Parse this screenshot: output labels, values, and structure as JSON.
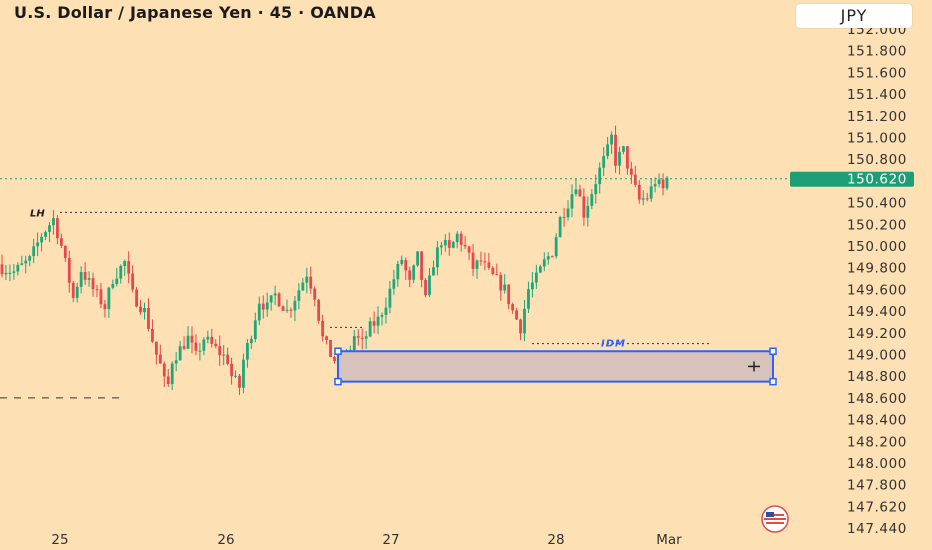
{
  "header": {
    "title": "U.S. Dollar / Japanese Yen · 45 · OANDA",
    "currency": "JPY"
  },
  "colors": {
    "background": "#fde0b3",
    "bull": "#1fa67a",
    "bear": "#e5484d",
    "price_tag": "#1e9e74",
    "zone_border": "#2962ff",
    "zone_fill": "#d7c3bc",
    "idm_label": "#2962ff"
  },
  "chart_data": {
    "type": "candlestick",
    "title": "U.S. Dollar / Japanese Yen · 45 · OANDA",
    "y_axis": {
      "ylim": [
        147.4,
        152.1
      ],
      "tick_labels": [
        "152.000",
        "151.800",
        "151.600",
        "151.400",
        "151.200",
        "151.000",
        "150.800",
        "150.600",
        "150.400",
        "150.200",
        "150.000",
        "149.800",
        "149.600",
        "149.400",
        "149.200",
        "149.000",
        "148.800",
        "148.600",
        "148.400",
        "148.200",
        "148.000",
        "147.800",
        "147.620",
        "147.440"
      ]
    },
    "x_axis": {
      "tick_labels": [
        "25",
        "26",
        "27",
        "28",
        "Mar"
      ]
    },
    "current_price": "150.620",
    "annotations": {
      "lh_label": "LH",
      "lh_level": 150.31,
      "idm_label": "IDM",
      "idm_level": 149.1,
      "demand_zone": [
        148.75,
        149.03
      ],
      "prior_low_level": 148.6,
      "breakout_level": 149.25
    },
    "close_path": [
      [
        0,
        149.8
      ],
      [
        3,
        149.76
      ],
      [
        7,
        149.87
      ],
      [
        10,
        150.1
      ],
      [
        13,
        150.25
      ],
      [
        15,
        150.0
      ],
      [
        18,
        149.52
      ],
      [
        20,
        149.78
      ],
      [
        23,
        149.6
      ],
      [
        26,
        149.44
      ],
      [
        28,
        149.7
      ],
      [
        31,
        149.85
      ],
      [
        33,
        149.55
      ],
      [
        36,
        149.4
      ],
      [
        39,
        149.0
      ],
      [
        40,
        148.9
      ],
      [
        41,
        148.75
      ],
      [
        42,
        148.72
      ],
      [
        43,
        148.95
      ],
      [
        45,
        149.05
      ],
      [
        47,
        149.15
      ],
      [
        49,
        148.98
      ],
      [
        51,
        149.15
      ],
      [
        54,
        149.05
      ],
      [
        57,
        148.95
      ],
      [
        58,
        148.8
      ],
      [
        60,
        148.7
      ],
      [
        61,
        148.95
      ],
      [
        63,
        149.2
      ],
      [
        65,
        149.5
      ],
      [
        67,
        149.43
      ],
      [
        69,
        149.55
      ],
      [
        72,
        149.4
      ],
      [
        73,
        149.45
      ],
      [
        75,
        149.6
      ],
      [
        77,
        149.75
      ],
      [
        79,
        149.55
      ],
      [
        81,
        149.15
      ],
      [
        83,
        149.0
      ],
      [
        85,
        148.9
      ],
      [
        87,
        148.95
      ],
      [
        89,
        149.17
      ],
      [
        91,
        149.1
      ],
      [
        93,
        149.25
      ],
      [
        95,
        149.32
      ],
      [
        97,
        149.48
      ],
      [
        99,
        149.7
      ],
      [
        101,
        149.88
      ],
      [
        103,
        149.65
      ],
      [
        105,
        149.9
      ],
      [
        107,
        149.5
      ],
      [
        109,
        149.85
      ],
      [
        111,
        150.05
      ],
      [
        113,
        149.95
      ],
      [
        115,
        150.1
      ],
      [
        117,
        149.98
      ],
      [
        119,
        149.8
      ],
      [
        121,
        149.86
      ],
      [
        123,
        149.75
      ],
      [
        125,
        149.68
      ],
      [
        127,
        149.6
      ],
      [
        129,
        149.4
      ],
      [
        131,
        149.25
      ],
      [
        133,
        149.6
      ],
      [
        135,
        149.7
      ],
      [
        137,
        149.85
      ],
      [
        139,
        149.95
      ],
      [
        141,
        150.25
      ],
      [
        143,
        150.4
      ],
      [
        145,
        150.58
      ],
      [
        147,
        150.3
      ],
      [
        149,
        150.5
      ],
      [
        151,
        150.7
      ],
      [
        153,
        150.88
      ],
      [
        154,
        151.0
      ],
      [
        155,
        150.78
      ],
      [
        157,
        150.88
      ],
      [
        159,
        150.62
      ],
      [
        161,
        150.42
      ],
      [
        163,
        150.45
      ],
      [
        165,
        150.6
      ],
      [
        167,
        150.52
      ],
      [
        168,
        150.62
      ]
    ]
  }
}
